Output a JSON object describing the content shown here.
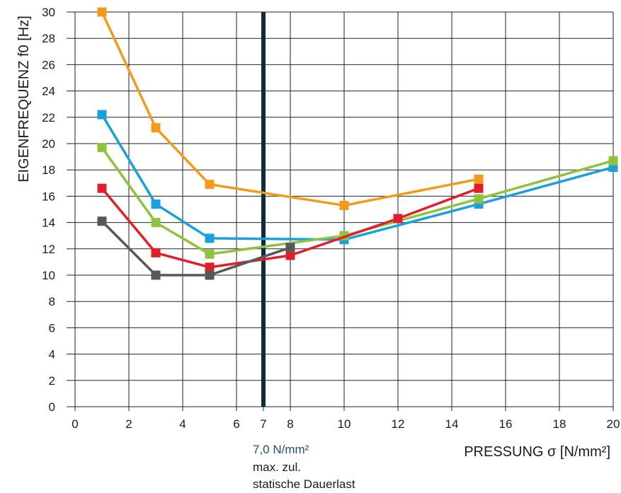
{
  "chart_data": {
    "type": "line",
    "title": "",
    "xlabel": "PRESSUNG σ [N/mm²]",
    "ylabel": "EIGENFREQUENZ f0 [Hz]",
    "xlim": [
      0,
      20
    ],
    "ylim": [
      0,
      30
    ],
    "grid": true,
    "legend": "none",
    "x_ticks": [
      0,
      2,
      4,
      6,
      7,
      8,
      10,
      12,
      14,
      16,
      18,
      20
    ],
    "y_ticks": [
      0,
      2,
      4,
      6,
      8,
      10,
      12,
      14,
      16,
      18,
      20,
      22,
      24,
      26,
      28,
      30
    ],
    "series": [
      {
        "color": "#f39a1b",
        "x": [
          1,
          3,
          5,
          10,
          15
        ],
        "y": [
          30,
          21.2,
          16.9,
          15.3,
          17.3
        ]
      },
      {
        "color": "#1aa0dc",
        "x": [
          1,
          3,
          5,
          10,
          15,
          20
        ],
        "y": [
          22.2,
          15.4,
          12.8,
          12.7,
          15.4,
          18.2
        ]
      },
      {
        "color": "#8dc43c",
        "x": [
          1,
          3,
          5,
          10,
          15,
          20
        ],
        "y": [
          19.7,
          14,
          11.6,
          13,
          15.8,
          18.7
        ]
      },
      {
        "color": "#e01f2a",
        "x": [
          1,
          3,
          5,
          8,
          12,
          15
        ],
        "y": [
          16.6,
          11.7,
          10.6,
          11.5,
          14.3,
          16.6
        ]
      },
      {
        "color": "#58585a",
        "x": [
          1,
          3,
          5,
          8
        ],
        "y": [
          14.1,
          10,
          10,
          12.1
        ]
      }
    ],
    "reference_line": {
      "x": 7,
      "color": "#0f2a3a",
      "value_label": "7,0 N/mm²",
      "label_line2": "max. zul.",
      "label_line3": "statische Dauerlast"
    }
  }
}
